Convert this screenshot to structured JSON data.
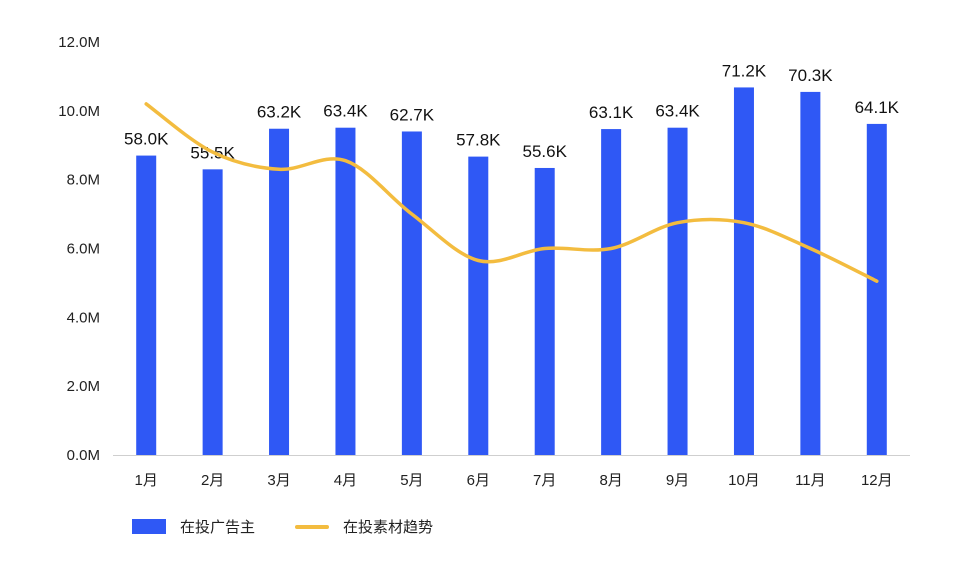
{
  "chart_data": {
    "type": "bar",
    "categories": [
      "1月",
      "2月",
      "3月",
      "4月",
      "5月",
      "6月",
      "7月",
      "8月",
      "9月",
      "10月",
      "11月",
      "12月"
    ],
    "ylim": [
      0,
      12000000
    ],
    "yticks": [
      "0.0M",
      "2.0M",
      "4.0M",
      "6.0M",
      "8.0M",
      "10.0M",
      "12.0M"
    ],
    "ytick_values": [
      0,
      2000000,
      4000000,
      6000000,
      8000000,
      10000000,
      12000000
    ],
    "grid": false,
    "legend_position": "bottom-left",
    "series": [
      {
        "name": "在投广告主",
        "type": "bar",
        "color": "#2f58f5",
        "values": [
          8700000,
          8300000,
          9480000,
          9510000,
          9400000,
          8670000,
          8340000,
          9470000,
          9510000,
          10680000,
          10550000,
          9620000
        ],
        "labels": [
          "58.0K",
          "55.5K",
          "63.2K",
          "63.4K",
          "62.7K",
          "57.8K",
          "55.6K",
          "63.1K",
          "63.4K",
          "71.2K",
          "70.3K",
          "64.1K"
        ]
      },
      {
        "name": "在投素材趋势",
        "type": "line",
        "smooth": true,
        "color": "#f3bc3f",
        "values": [
          10200000,
          8800000,
          8300000,
          8550000,
          7000000,
          5650000,
          6000000,
          6000000,
          6750000,
          6750000,
          6000000,
          5050000
        ]
      }
    ]
  },
  "legend": {
    "bar_label": "在投广告主",
    "line_label": "在投素材趋势"
  }
}
